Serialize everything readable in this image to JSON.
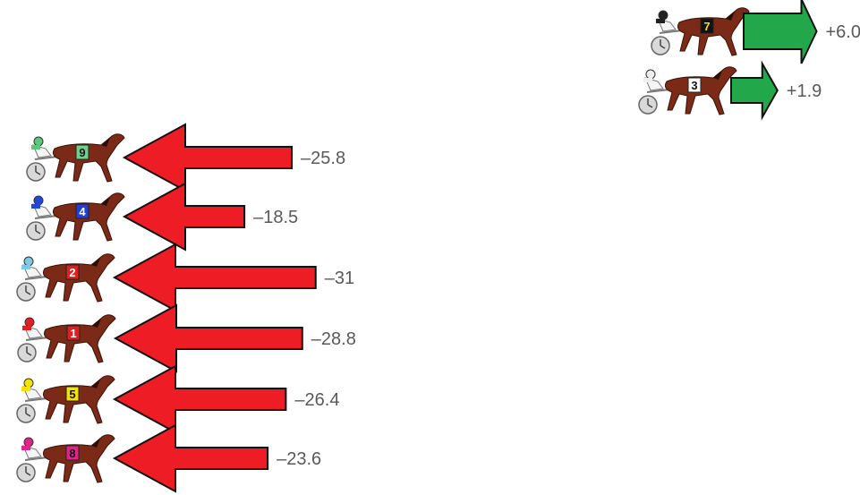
{
  "chart_data": {
    "type": "bar",
    "orientation": "horizontal-arrows",
    "categories": [
      "7",
      "3",
      "9",
      "4",
      "2",
      "1",
      "5",
      "8"
    ],
    "values": [
      6.0,
      1.9,
      -25.8,
      -18.5,
      -31,
      -28.8,
      -26.4,
      -23.6
    ],
    "value_labels": [
      "+6.0",
      "+1.9",
      "–25.8",
      "–18.5",
      "–31",
      "–28.8",
      "–26.4",
      "–23.6"
    ],
    "positive_color": "#22a84a",
    "negative_color": "#ee1c25",
    "markers": [
      {
        "number": "7",
        "saddle_color": "#111111",
        "number_color": "#f4e300",
        "jockey_color": "#222222"
      },
      {
        "number": "3",
        "saddle_color": "#ffffff",
        "number_color": "#111111",
        "jockey_color": "#eeeeee"
      },
      {
        "number": "9",
        "saddle_color": "#6fd08c",
        "number_color": "#1a1a1a",
        "jockey_color": "#5cc77c"
      },
      {
        "number": "4",
        "saddle_color": "#1f3fd6",
        "number_color": "#ffffff",
        "jockey_color": "#2346d8"
      },
      {
        "number": "2",
        "saddle_color": "#e02020",
        "number_color": "#ffffff",
        "jockey_color": "#7ec8e3"
      },
      {
        "number": "1",
        "saddle_color": "#e02020",
        "number_color": "#ffffff",
        "jockey_color": "#e02020"
      },
      {
        "number": "5",
        "saddle_color": "#f4e300",
        "number_color": "#111111",
        "jockey_color": "#f4e300"
      },
      {
        "number": "8",
        "saddle_color": "#e0248a",
        "number_color": "#111111",
        "jockey_color": "#e0248a"
      }
    ]
  }
}
